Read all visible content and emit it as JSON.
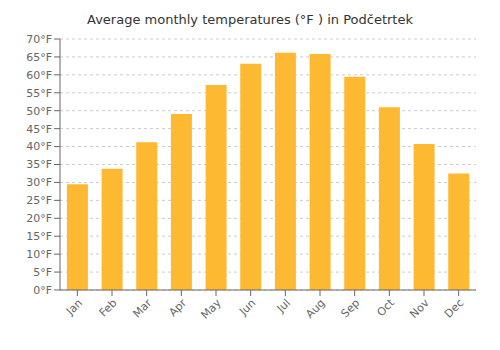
{
  "chart_data": {
    "type": "bar",
    "title": "Average monthly temperatures (°F ) in Podčetrtek",
    "categories": [
      "Jan",
      "Feb",
      "Mar",
      "Apr",
      "May",
      "Jun",
      "Jul",
      "Aug",
      "Sep",
      "Oct",
      "Nov",
      "Dec"
    ],
    "values": [
      29.5,
      33.8,
      41.2,
      49.1,
      57.2,
      63.1,
      66.2,
      65.8,
      59.5,
      51.0,
      40.7,
      32.5
    ],
    "color": "#FDB931",
    "ylim": [
      0,
      70
    ],
    "yticks": [
      {
        "value": 0,
        "label": "0°F"
      },
      {
        "value": 5,
        "label": "5°F"
      },
      {
        "value": 10,
        "label": "10°F"
      },
      {
        "value": 15,
        "label": "15°F"
      },
      {
        "value": 20,
        "label": "20°F"
      },
      {
        "value": 25,
        "label": "25°F"
      },
      {
        "value": 30,
        "label": "30°F"
      },
      {
        "value": 35,
        "label": "35°F"
      },
      {
        "value": 40,
        "label": "40°F"
      },
      {
        "value": 45,
        "label": "45°F"
      },
      {
        "value": 50,
        "label": "50°F"
      },
      {
        "value": 55,
        "label": "55°F"
      },
      {
        "value": 60,
        "label": "60°F"
      },
      {
        "value": 65,
        "label": "65°F"
      },
      {
        "value": 70,
        "label": "70°F"
      }
    ],
    "grid": true
  }
}
